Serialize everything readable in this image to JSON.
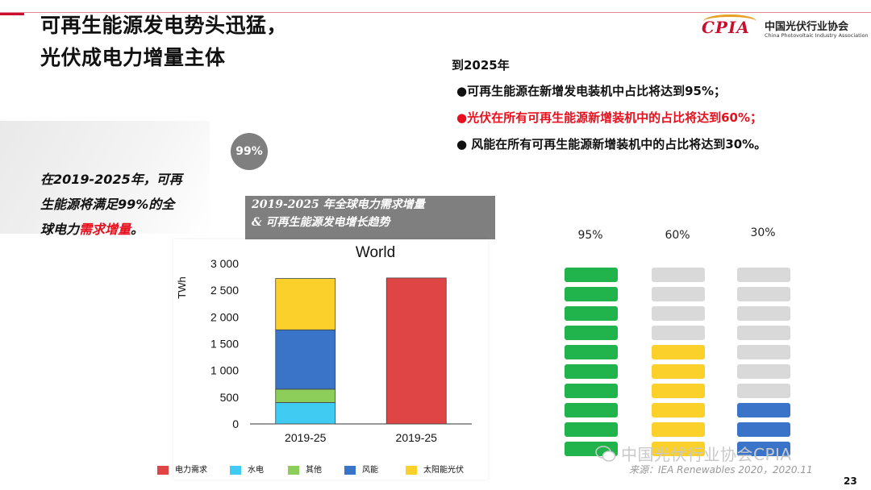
{
  "header": {
    "title_line1": "可再生能源发电势头迅猛，",
    "title_line2": "光伏成电力增量主体"
  },
  "logo": {
    "mark": "CPIA",
    "name_cn": "中国光伏行业协会",
    "name_en": "China Photovoltaic Industry Association"
  },
  "bullets": {
    "heading": "到2025年",
    "items": [
      {
        "text": "●可再生能源在新增发电装机中占比将达到95%；",
        "highlight": false
      },
      {
        "text": "●光伏在所有可再生能源新增装机中的占比将达到60%；",
        "highlight": true
      },
      {
        "text": "● 风能在所有可再生能源新增装机中的占比将达到30%。",
        "highlight": false
      }
    ]
  },
  "left_note": {
    "circle_label": "99%",
    "line1": "在2019-2025年，可再",
    "line2": "生能源将满足99%的全",
    "line3_prefix": "球电力",
    "line3_highlight": "需求增量",
    "line3_suffix": "。"
  },
  "chart_box_title": {
    "line1": "2019-2025 年全球电力需求增量",
    "line2": "& 可再生能源发电增长趋势"
  },
  "chart_data": [
    {
      "type": "bar",
      "stacked": true,
      "title": "World",
      "ylabel": "TWh",
      "xlabel": "",
      "ylim": [
        0,
        3000
      ],
      "yticks": [
        0,
        500,
        1000,
        1500,
        2000,
        2500,
        3000
      ],
      "ytick_labels": [
        "0",
        "500",
        "1 000",
        "1 500",
        "2 000",
        "2 500",
        "3 000"
      ],
      "categories": [
        "2019-25",
        "2019-25"
      ],
      "series": [
        {
          "name": "电力需求",
          "color": "#e04545",
          "values": [
            0,
            2730
          ]
        },
        {
          "name": "水电",
          "color": "#3fcbf2",
          "values": [
            400,
            0
          ]
        },
        {
          "name": "其他",
          "color": "#8dcd5a",
          "values": [
            250,
            0
          ]
        },
        {
          "name": "风能",
          "color": "#3a74c8",
          "values": [
            1110,
            0
          ]
        },
        {
          "name": "太阳能光伏",
          "color": "#fbd02a",
          "values": [
            960,
            0
          ]
        }
      ],
      "grid": false,
      "legend_placement": "bottom"
    },
    {
      "type": "bar",
      "subtype": "segment-gauge",
      "segments_total": 10,
      "columns": [
        {
          "label": "95%",
          "value": 95,
          "filled_color": "#21b34c"
        },
        {
          "label": "60%",
          "value": 60,
          "filled_color": "#fbd02a"
        },
        {
          "label": "30%",
          "value": 30,
          "filled_color": "#3a74c8"
        }
      ],
      "empty_color": "#d9d9d9"
    }
  ],
  "footer": {
    "source": "来源：IEA Renewables 2020，2020.11",
    "watermark": "中国光伏行业协会CPIA",
    "page_number": "23"
  }
}
